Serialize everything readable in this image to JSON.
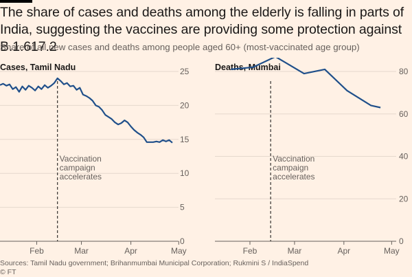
{
  "title": "The share of cases and deaths among the elderly is falling in parts of India, suggesting the vaccines are providing some protection against B.1.617.2",
  "subtitle": "Share of all new cases and deaths among people aged 60+ (most-vaccinated age group)",
  "source": "Sources: Tamil Nadu government; Brihanmumbai Municipal Corporation; Rukmini S / IndiaSpend",
  "credit": "© FT",
  "colors": {
    "line": "#1f4f8a",
    "background": "#fff1e5",
    "grid": "#e5d8cd"
  },
  "chart_data": [
    {
      "type": "line",
      "title": "Cases, Tamil Nadu",
      "x_ticks": [
        "Feb",
        "Mar",
        "Apr",
        "May"
      ],
      "y_ticks": [
        0,
        5,
        10,
        15,
        20,
        25
      ],
      "ylim": [
        0,
        25
      ],
      "y_axis_side": "right",
      "grid": true,
      "annotation": {
        "lines": [
          "Vaccination",
          "campaign",
          "accelerates"
        ],
        "date": "Feb 28"
      },
      "series": [
        {
          "x": [
            "Jan 23",
            "Jan 25",
            "Jan 27",
            "Jan 29",
            "Jan 31",
            "Feb 2",
            "Feb 4",
            "Feb 6",
            "Feb 8",
            "Feb 10",
            "Feb 12",
            "Feb 14",
            "Feb 16",
            "Feb 18",
            "Feb 20",
            "Feb 22",
            "Feb 24",
            "Feb 26",
            "Feb 28",
            "Mar 2",
            "Mar 4",
            "Mar 6",
            "Mar 8",
            "Mar 10",
            "Mar 12",
            "Mar 14",
            "Mar 16",
            "Mar 18",
            "Mar 20",
            "Mar 22",
            "Mar 24",
            "Mar 26",
            "Mar 28",
            "Mar 30",
            "Apr 1",
            "Apr 3",
            "Apr 5",
            "Apr 7",
            "Apr 9",
            "Apr 11",
            "Apr 13",
            "Apr 15",
            "Apr 17",
            "Apr 19",
            "Apr 21",
            "Apr 23",
            "Apr 25",
            "Apr 27",
            "Apr 29",
            "May 1",
            "May 3",
            "May 5",
            "May 7",
            "May 9",
            "May 11"
          ],
          "values": [
            23.0,
            23.2,
            22.9,
            23.1,
            22.4,
            22.7,
            22.0,
            22.8,
            22.3,
            22.9,
            22.6,
            22.2,
            22.8,
            22.4,
            23.0,
            22.6,
            22.9,
            23.3,
            24.0,
            23.6,
            23.1,
            23.3,
            22.8,
            22.9,
            22.3,
            22.6,
            21.6,
            21.4,
            21.1,
            20.7,
            20.0,
            19.8,
            19.3,
            18.6,
            18.3,
            18.0,
            17.5,
            17.2,
            17.4,
            17.8,
            17.5,
            16.9,
            16.4,
            16.0,
            15.7,
            15.3,
            14.6,
            14.6,
            14.6,
            14.7,
            14.6,
            14.9,
            14.7,
            14.9,
            14.5
          ]
        }
      ]
    },
    {
      "type": "line",
      "title": "Deaths, Mumbai",
      "x_ticks": [
        "Feb",
        "Mar",
        "Apr",
        "May"
      ],
      "y_ticks": [
        0,
        20,
        40,
        60,
        80
      ],
      "ylim": [
        0,
        80
      ],
      "y_axis_side": "right",
      "grid": true,
      "annotation": {
        "lines": [
          "Vaccination",
          "campaign",
          "accelerates"
        ],
        "date": "Feb 28"
      },
      "series": [
        {
          "x": [
            "Feb 3",
            "Feb 17",
            "Mar 3",
            "Mar 21",
            "Apr 3",
            "Apr 17",
            "May 2",
            "May 8"
          ],
          "values": [
            81,
            82,
            87,
            79,
            81,
            71,
            64,
            63
          ]
        }
      ]
    }
  ]
}
